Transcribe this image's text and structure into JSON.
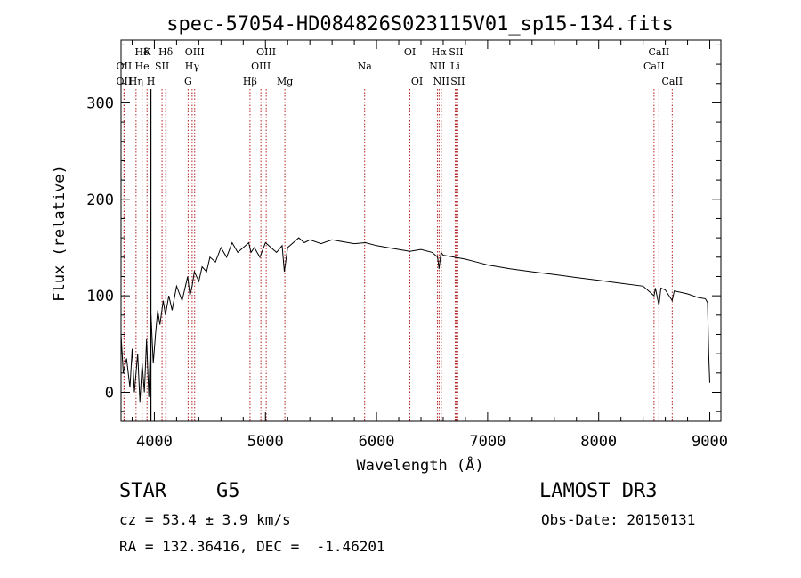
{
  "chart_data": {
    "type": "line",
    "title": "spec-57054-HD084826S023115V01_sp15-134.fits",
    "xlabel": "Wavelength (Å)",
    "ylabel": "Flux (relative)",
    "xlim": [
      3700,
      9100
    ],
    "ylim": [
      -30,
      365
    ],
    "xticks": [
      4000,
      5000,
      6000,
      7000,
      8000,
      9000
    ],
    "yticks": [
      0,
      100,
      200,
      300
    ],
    "series": [
      {
        "name": "flux",
        "x": [
          3700,
          3720,
          3750,
          3780,
          3800,
          3820,
          3850,
          3870,
          3890,
          3910,
          3930,
          3950,
          3970,
          3990,
          4010,
          4030,
          4050,
          4080,
          4100,
          4130,
          4160,
          4200,
          4250,
          4300,
          4320,
          4340,
          4360,
          4400,
          4430,
          4470,
          4500,
          4550,
          4600,
          4650,
          4700,
          4750,
          4800,
          4850,
          4870,
          4900,
          4950,
          5000,
          5050,
          5100,
          5150,
          5170,
          5200,
          5250,
          5300,
          5350,
          5400,
          5500,
          5600,
          5700,
          5800,
          5900,
          6000,
          6100,
          6200,
          6300,
          6400,
          6500,
          6550,
          6563,
          6580,
          6600,
          6700,
          6800,
          6900,
          7000,
          7200,
          7400,
          7600,
          7800,
          8000,
          8200,
          8400,
          8498,
          8510,
          8542,
          8560,
          8600,
          8662,
          8680,
          8800,
          8900,
          8960,
          8980,
          8990,
          9000
        ],
        "values": [
          60,
          20,
          35,
          5,
          45,
          0,
          40,
          -10,
          30,
          0,
          55,
          -5,
          80,
          30,
          60,
          85,
          70,
          95,
          80,
          100,
          85,
          110,
          95,
          120,
          100,
          110,
          125,
          115,
          130,
          125,
          140,
          135,
          150,
          140,
          155,
          145,
          150,
          155,
          145,
          150,
          140,
          155,
          150,
          145,
          152,
          125,
          150,
          155,
          160,
          155,
          158,
          154,
          158,
          156,
          154,
          155,
          152,
          150,
          148,
          146,
          148,
          145,
          140,
          128,
          145,
          142,
          140,
          138,
          135,
          132,
          128,
          125,
          122,
          119,
          116,
          113,
          110,
          100,
          108,
          90,
          108,
          106,
          95,
          105,
          102,
          98,
          97,
          93,
          40,
          10
        ]
      }
    ],
    "line_marks": [
      {
        "label": "Hδ",
        "x": 3889,
        "rows": [
          1
        ],
        "style": "dotted"
      },
      {
        "label": "K",
        "x": 3934,
        "rows": [
          1
        ],
        "style": "dotted"
      },
      {
        "label": "OII",
        "x": 3727,
        "rows": [
          2
        ],
        "style": "dotted"
      },
      {
        "label": "He",
        "x": 3889,
        "rows": [
          2
        ],
        "style": "dotted"
      },
      {
        "label": "OII",
        "x": 3727,
        "rows": [
          3
        ],
        "style": "dotted"
      },
      {
        "label": "Hη",
        "x": 3835,
        "rows": [
          3
        ],
        "style": "dotted"
      },
      {
        "label": "H",
        "x": 3969,
        "rows": [
          3
        ],
        "style": "solid"
      },
      {
        "label": "Hδ",
        "x": 4102,
        "rows": [
          1
        ],
        "style": "dotted"
      },
      {
        "label": "SII",
        "x": 4069,
        "rows": [
          2
        ],
        "style": "dotted"
      },
      {
        "label": "OIII",
        "x": 4363,
        "rows": [
          1
        ],
        "style": "dotted"
      },
      {
        "label": "Hγ",
        "x": 4340,
        "rows": [
          2
        ],
        "style": "dotted"
      },
      {
        "label": "G",
        "x": 4304,
        "rows": [
          3
        ],
        "style": "dotted"
      },
      {
        "label": "Hβ",
        "x": 4861,
        "rows": [
          3
        ],
        "style": "dotted"
      },
      {
        "label": "OIII",
        "x": 5007,
        "rows": [
          1
        ],
        "style": "dotted"
      },
      {
        "label": "OIII",
        "x": 4959,
        "rows": [
          2
        ],
        "style": "dotted"
      },
      {
        "label": "Mg",
        "x": 5175,
        "rows": [
          3
        ],
        "style": "dotted"
      },
      {
        "label": "Na",
        "x": 5893,
        "rows": [
          2
        ],
        "style": "dotted"
      },
      {
        "label": "OI",
        "x": 6300,
        "rows": [
          1
        ],
        "style": "dotted"
      },
      {
        "label": "OI",
        "x": 6364,
        "rows": [
          3
        ],
        "style": "dotted"
      },
      {
        "label": "Hα",
        "x": 6563,
        "rows": [
          1
        ],
        "style": "dotted"
      },
      {
        "label": "SII",
        "x": 6716,
        "rows": [
          1
        ],
        "style": "dotted"
      },
      {
        "label": "NII",
        "x": 6548,
        "rows": [
          2
        ],
        "style": "dotted"
      },
      {
        "label": "Li",
        "x": 6708,
        "rows": [
          2
        ],
        "style": "dotted"
      },
      {
        "label": "NII",
        "x": 6583,
        "rows": [
          3
        ],
        "style": "dotted"
      },
      {
        "label": "SII",
        "x": 6731,
        "rows": [
          3
        ],
        "style": "dotted"
      },
      {
        "label": "CaII",
        "x": 8542,
        "rows": [
          1
        ],
        "style": "dotted"
      },
      {
        "label": "CaII",
        "x": 8498,
        "rows": [
          2
        ],
        "style": "dotted"
      },
      {
        "label": "CaII",
        "x": 8662,
        "rows": [
          3
        ],
        "style": "dotted"
      }
    ]
  },
  "info": {
    "object_type": "STAR",
    "spectral_class": "G5",
    "survey": "LAMOST DR3",
    "redshift": "cz = 53.4 ± 3.9 km/s",
    "obs_date": "Obs-Date: 20150131",
    "coords": "RA = 132.36416, DEC =  -1.46201"
  },
  "colors": {
    "line_marks": "#b22222",
    "spectrum": "#000000"
  }
}
